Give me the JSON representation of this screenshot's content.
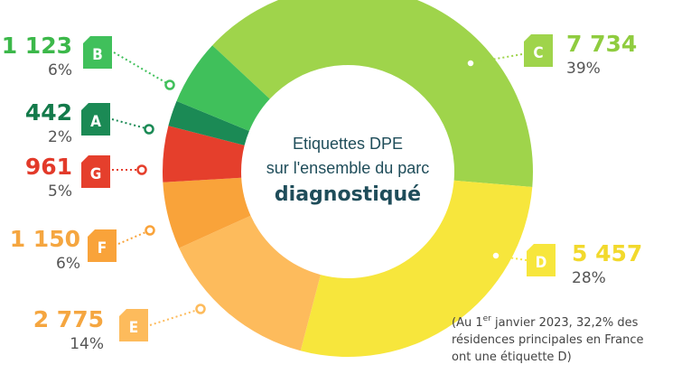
{
  "chart_data": {
    "type": "donut",
    "title": [
      "Etiquettes DPE",
      "sur l'ensemble du parc",
      "diagnostiqué"
    ],
    "categories": [
      "C",
      "D",
      "E",
      "F",
      "G",
      "A",
      "B"
    ],
    "values": [
      7734,
      5457,
      2775,
      1150,
      961,
      442,
      1123
    ],
    "value_labels": [
      "7 734",
      "5 457",
      "2 775",
      "1 150",
      "961",
      "442",
      "1 123"
    ],
    "shares": [
      39,
      28,
      14,
      6,
      5,
      2,
      6
    ],
    "share_labels": [
      "39%",
      "28%",
      "14%",
      "6%",
      "5%",
      "2%",
      "6%"
    ],
    "colors": [
      "#9fd44b",
      "#f7e63c",
      "#fdbb5c",
      "#f9a33a",
      "#e53f2c",
      "#1b8a55",
      "#40c05b"
    ],
    "label_colors": [
      "#8fcc3f",
      "#f2d92c",
      "#f5a640",
      "#f5a640",
      "#e23a2a",
      "#137a4a",
      "#3cb84a"
    ],
    "note": {
      "start": "(Au 1",
      "sup": "er",
      "rest": " janvier 2023, 32,2% des",
      "line2": "résidences principales en France",
      "line3": "ont une étiquette D)"
    }
  }
}
